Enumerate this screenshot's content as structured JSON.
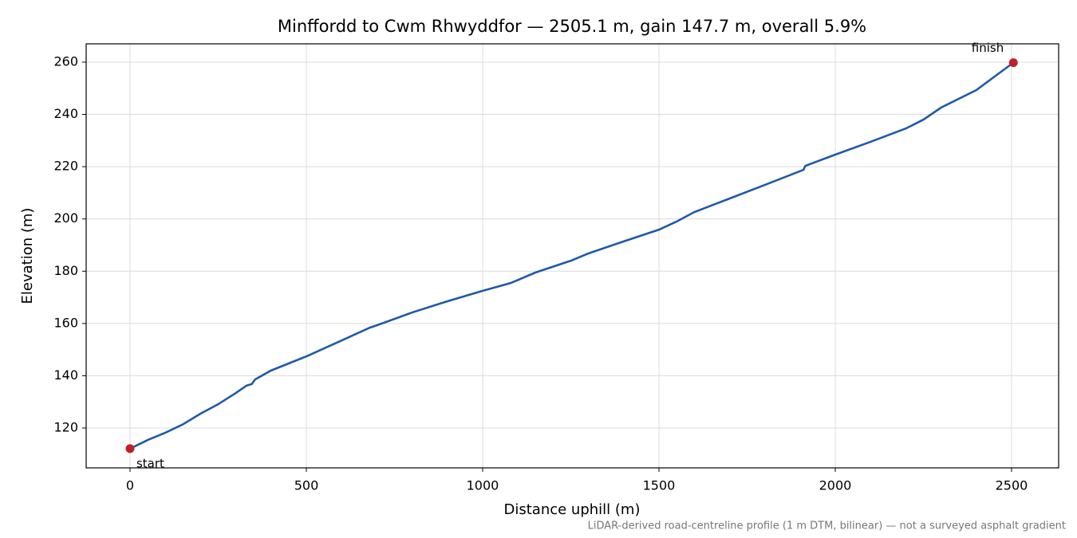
{
  "chart_data": {
    "type": "line",
    "title": "Minffordd to Cwm Rhwyddfor — 2505.1 m, gain 147.7 m, overall 5.9%",
    "x_label": "Distance uphill (m)",
    "y_label": "Elevation (m)",
    "footnote": "LiDAR-derived road-centreline profile (1 m DTM, bilinear) — not a surveyed asphalt gradient",
    "x": [
      0,
      50,
      100,
      150,
      200,
      250,
      300,
      330,
      345,
      355,
      400,
      500,
      600,
      680,
      700,
      800,
      900,
      1000,
      1080,
      1150,
      1250,
      1300,
      1400,
      1500,
      1550,
      1600,
      1700,
      1800,
      1910,
      1915,
      2000,
      2100,
      2200,
      2250,
      2300,
      2400,
      2505.1
    ],
    "series": [
      {
        "name": "Elevation",
        "color": "#1f5aa6",
        "values": [
          112.1,
          115.4,
          118.2,
          121.4,
          125.5,
          129.1,
          133.4,
          136.2,
          136.8,
          138.6,
          142,
          147.4,
          153.5,
          158.4,
          159.3,
          164.2,
          168.5,
          172.5,
          175.5,
          179.5,
          184,
          186.8,
          191.4,
          195.9,
          199,
          202.6,
          207.8,
          213,
          218.8,
          220.3,
          224.6,
          229.5,
          234.6,
          238,
          242.6,
          249.3,
          259.8
        ]
      }
    ],
    "annotations": [
      {
        "text": "start",
        "x": 0,
        "y": 112.1
      },
      {
        "text": "finish",
        "x": 2505.1,
        "y": 259.8
      }
    ],
    "marker_color": "#c0202a",
    "xlim": [
      -124.4,
      2633.5
    ],
    "ylim": [
      104.75,
      267.0
    ],
    "xticks": [
      0,
      500,
      1000,
      1500,
      2000,
      2500
    ],
    "yticks": [
      120,
      140,
      160,
      180,
      200,
      220,
      240,
      260
    ],
    "grid": true
  }
}
